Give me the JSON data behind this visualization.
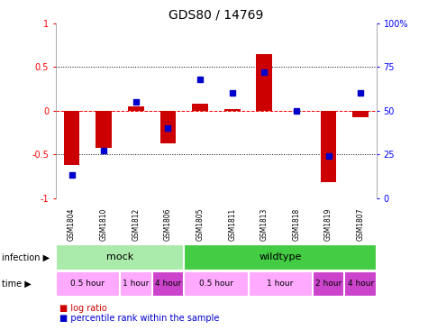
{
  "title": "GDS80 / 14769",
  "samples": [
    "GSM1804",
    "GSM1810",
    "GSM1812",
    "GSM1806",
    "GSM1805",
    "GSM1811",
    "GSM1813",
    "GSM1818",
    "GSM1819",
    "GSM1807"
  ],
  "log_ratio": [
    -0.62,
    -0.43,
    0.05,
    -0.38,
    0.08,
    0.02,
    0.65,
    0.0,
    -0.82,
    -0.08
  ],
  "percentile_raw": [
    13,
    27,
    55,
    40,
    68,
    60,
    72,
    50,
    24,
    60
  ],
  "bar_color": "#cc0000",
  "dot_color": "#0000cc",
  "ylim_left": [
    -1,
    1
  ],
  "ylim_right": [
    0,
    100
  ],
  "yticks_left": [
    -1,
    -0.5,
    0,
    0.5,
    1
  ],
  "yticks_right": [
    0,
    25,
    50,
    75,
    100
  ],
  "ytick_labels_left": [
    "-1",
    "-0.5",
    "0",
    "0.5",
    "1"
  ],
  "ytick_labels_right": [
    "0",
    "25",
    "50",
    "75",
    "100%"
  ],
  "infection_groups": [
    {
      "label": "mock",
      "start": 0,
      "end": 3,
      "color": "#aaeaaa"
    },
    {
      "label": "wildtype",
      "start": 4,
      "end": 9,
      "color": "#44cc44"
    }
  ],
  "time_groups": [
    {
      "label": "0.5 hour",
      "start": 0,
      "end": 1,
      "color": "#ffaaff"
    },
    {
      "label": "1 hour",
      "start": 2,
      "end": 2,
      "color": "#ffaaff"
    },
    {
      "label": "4 hour",
      "start": 3,
      "end": 3,
      "color": "#cc44cc"
    },
    {
      "label": "0.5 hour",
      "start": 4,
      "end": 5,
      "color": "#ffaaff"
    },
    {
      "label": "1 hour",
      "start": 6,
      "end": 7,
      "color": "#ffaaff"
    },
    {
      "label": "2 hour",
      "start": 8,
      "end": 8,
      "color": "#cc44cc"
    },
    {
      "label": "4 hour",
      "start": 9,
      "end": 9,
      "color": "#cc44cc"
    }
  ],
  "legend_items": [
    {
      "label": "log ratio",
      "color": "#cc0000"
    },
    {
      "label": "percentile rank within the sample",
      "color": "#0000cc"
    }
  ],
  "infection_label": "infection",
  "time_label": "time",
  "sample_bg": "#cccccc",
  "bg_color": "#ffffff"
}
